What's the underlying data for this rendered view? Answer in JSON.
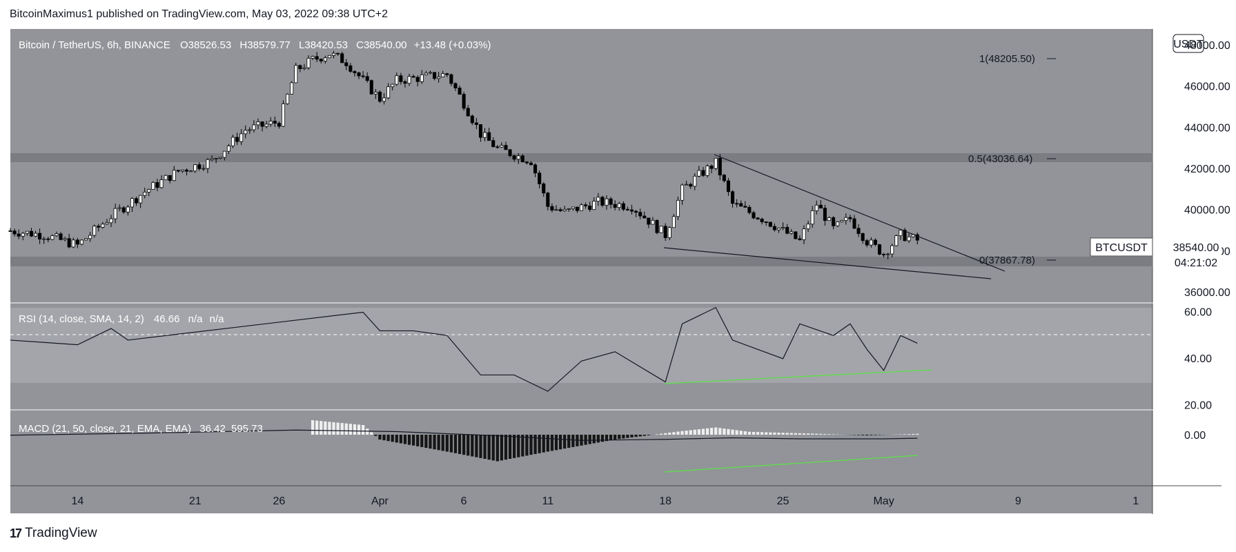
{
  "header": {
    "published_note": "BitcoinMaximus1 published on TradingView.com, May 03, 2022 09:38 UTC+2"
  },
  "footer": {
    "brand": "TradingView",
    "brand_mark": "17"
  },
  "price_pane": {
    "symbol": "Bitcoin / TetherUS, 6h, BINANCE",
    "ohlc": {
      "o_label": "O",
      "o": "38526.53",
      "h_label": "H",
      "h": "38579.77",
      "l_label": "L",
      "l": "38420.53",
      "c_label": "C",
      "c": "38540.00",
      "change": "+13.48 (+0.03%)"
    },
    "currency_badge": "USDT",
    "last_price_symbol": "BTCUSDT",
    "last_price": "38540.00",
    "countdown": "04:21:02",
    "fib_levels": [
      {
        "label": "1(48205.50)",
        "value": 48205.5
      },
      {
        "label": "0.5(43036.64)",
        "value": 43036.64
      },
      {
        "label": "0(37867.78)",
        "value": 37867.78
      }
    ]
  },
  "rsi_pane": {
    "legend": "RSI (14, close, SMA, 14, 2)",
    "value": "46.66",
    "na1": "n/a",
    "na2": "n/a",
    "ticks": [
      "60.00",
      "40.00",
      "20.00"
    ]
  },
  "macd_pane": {
    "legend": "MACD (21, 50, close, 21, EMA, EMA)",
    "value1": "36.42",
    "value2": "595.73",
    "ticks": [
      "0.00"
    ]
  },
  "x_axis": {
    "ticks": [
      "14",
      "21",
      "26",
      "Apr",
      "6",
      "11",
      "18",
      "25",
      "May",
      "9",
      "1"
    ]
  },
  "colors": {
    "background": "#929499",
    "candle_up": "#ffffff",
    "candle_down": "#000000",
    "support_green": "#5ee04a",
    "zone": "#7b7d82"
  },
  "chart_data": [
    {
      "type": "candlestick",
      "title": "Bitcoin / TetherUS, 6h, BINANCE",
      "x_range": [
        "Mar 10 2022",
        "May 03 2022"
      ],
      "ylim": [
        35500,
        48800
      ],
      "y_ticks": [
        36000,
        38000,
        40000,
        42000,
        44000,
        46000,
        48000
      ],
      "close_path_approx": [
        [
          "Mar 10",
          39000
        ],
        [
          "Mar 12",
          38800
        ],
        [
          "Mar 14",
          38300
        ],
        [
          "Mar 16",
          39700
        ],
        [
          "Mar 18",
          40900
        ],
        [
          "Mar 20",
          41900
        ],
        [
          "Mar 22",
          42400
        ],
        [
          "Mar 24",
          43900
        ],
        [
          "Mar 26",
          44300
        ],
        [
          "Mar 27",
          46800
        ],
        [
          "Mar 28",
          47300
        ],
        [
          "Mar 29",
          47600
        ],
        [
          "Mar 30",
          47200
        ],
        [
          "Apr 1",
          45400
        ],
        [
          "Apr 2",
          46300
        ],
        [
          "Apr 4",
          46500
        ],
        [
          "Apr 5",
          46600
        ],
        [
          "Apr 6",
          45200
        ],
        [
          "Apr 7",
          43700
        ],
        [
          "Apr 8",
          43000
        ],
        [
          "Apr 10",
          42400
        ],
        [
          "Apr 11",
          40200
        ],
        [
          "Apr 12",
          39900
        ],
        [
          "Apr 14",
          40400
        ],
        [
          "Apr 16",
          40200
        ],
        [
          "Apr 18",
          38800
        ],
        [
          "Apr 19",
          41000
        ],
        [
          "Apr 20",
          41700
        ],
        [
          "Apr 21",
          42300
        ],
        [
          "Apr 22",
          40300
        ],
        [
          "Apr 24",
          39500
        ],
        [
          "Apr 26",
          38500
        ],
        [
          "Apr 27",
          40300
        ],
        [
          "Apr 28",
          39100
        ],
        [
          "Apr 29",
          39600
        ],
        [
          "Apr 30",
          38500
        ],
        [
          "May 1",
          37900
        ],
        [
          "May 2",
          38800
        ],
        [
          "May 3",
          38540
        ]
      ],
      "zones": [
        [
          42800,
          43300
        ],
        [
          37600,
          38100
        ]
      ],
      "trendlines": [
        {
          "name": "resistance",
          "from": [
            "Apr 21",
            43200
          ],
          "to": [
            "May 7",
            36700
          ]
        },
        {
          "name": "support",
          "from": [
            "Apr 18",
            38700
          ],
          "to": [
            "May 7",
            36900
          ]
        }
      ]
    },
    {
      "type": "line",
      "title": "RSI (14, close, SMA, 14, 2)",
      "ylim": [
        18,
        64
      ],
      "y_ticks": [
        60,
        40,
        20
      ],
      "band": [
        30,
        50
      ],
      "values_approx": [
        [
          "Mar 10",
          48
        ],
        [
          "Mar 12",
          47
        ],
        [
          "Mar 14",
          46
        ],
        [
          "Mar 16",
          53
        ],
        [
          "Mar 17",
          48
        ],
        [
          "Mar 31",
          60
        ],
        [
          "Apr 1",
          52
        ],
        [
          "Apr 3",
          52
        ],
        [
          "Apr 5",
          50
        ],
        [
          "Apr 7",
          33
        ],
        [
          "Apr 9",
          33
        ],
        [
          "Apr 11",
          26
        ],
        [
          "Apr 13",
          39
        ],
        [
          "Apr 15",
          43
        ],
        [
          "Apr 18",
          30
        ],
        [
          "Apr 19",
          55
        ],
        [
          "Apr 21",
          62
        ],
        [
          "Apr 22",
          48
        ],
        [
          "Apr 25",
          40
        ],
        [
          "Apr 26",
          55
        ],
        [
          "Apr 28",
          50
        ],
        [
          "Apr 29",
          55
        ],
        [
          "Apr 30",
          44
        ],
        [
          "May 1",
          35
        ],
        [
          "May 2",
          50
        ],
        [
          "May 3",
          46.66
        ]
      ],
      "divergence_line": {
        "from": [
          "Apr 18",
          30
        ],
        "to": [
          "May 3",
          35
        ]
      }
    },
    {
      "type": "histogram",
      "title": "MACD (21, 50, close, 21, EMA, EMA)",
      "y_ticks": [
        0
      ],
      "values_approx": [
        [
          "Mar 28",
          600
        ],
        [
          "Mar 31",
          400
        ],
        [
          "Apr 1",
          -200
        ],
        [
          "Apr 5",
          -700
        ],
        [
          "Apr 8",
          -1100
        ],
        [
          "Apr 11",
          -700
        ],
        [
          "Apr 15",
          -200
        ],
        [
          "Apr 19",
          150
        ],
        [
          "Apr 21",
          300
        ],
        [
          "Apr 23",
          120
        ],
        [
          "Apr 27",
          40
        ],
        [
          "Apr 30",
          -30
        ],
        [
          "May 3",
          36.42
        ]
      ],
      "macd_line_approx": [
        [
          "Mar 10",
          -100
        ],
        [
          "Mar 18",
          300
        ],
        [
          "Mar 27",
          900
        ],
        [
          "Apr 2",
          600
        ],
        [
          "Apr 8",
          -200
        ],
        [
          "Apr 13",
          -1100
        ],
        [
          "Apr 18",
          -900
        ],
        [
          "Apr 22",
          -600
        ],
        [
          "Apr 26",
          -800
        ],
        [
          "May 1",
          -800
        ],
        [
          "May 3",
          -680
        ]
      ],
      "divergence_line": {
        "from": [
          "Apr 18",
          -950
        ],
        "to": [
          "May 3",
          -780
        ]
      }
    }
  ]
}
